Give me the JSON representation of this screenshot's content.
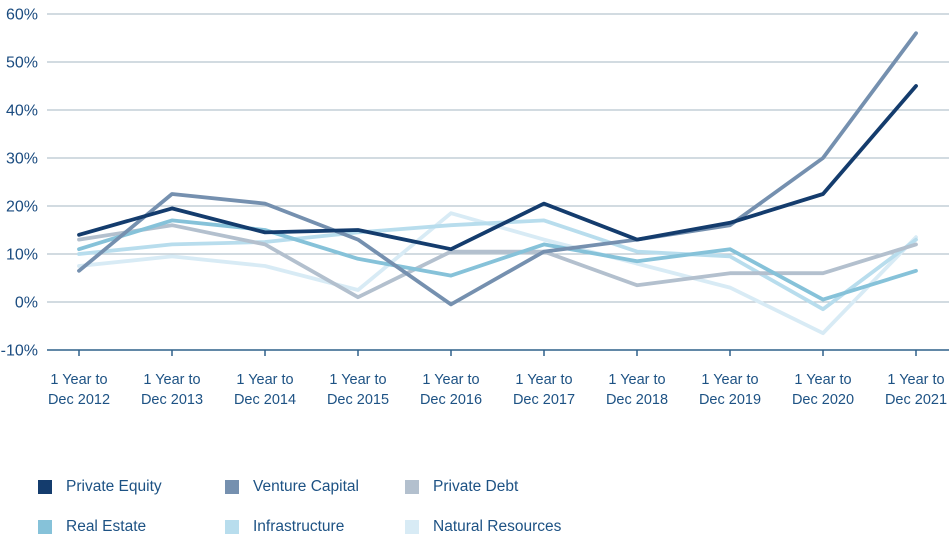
{
  "chart_data": {
    "type": "line",
    "title": "",
    "x_axis": {
      "tick_prefix": "1 Year to",
      "categories": [
        "Dec 2012",
        "Dec 2013",
        "Dec 2014",
        "Dec 2015",
        "Dec 2016",
        "Dec 2017",
        "Dec 2018",
        "Dec 2019",
        "Dec 2020",
        "Dec 2021"
      ]
    },
    "y_axis": {
      "unit": "%",
      "min": -10,
      "max": 60,
      "tick_step": 10,
      "ticks": [
        "60%",
        "50%",
        "40%",
        "30%",
        "20%",
        "10%",
        "0%",
        "-10%"
      ]
    },
    "grid": "horizontal",
    "legend_position": "bottom",
    "series": [
      {
        "name": "Private Equity",
        "color": "#143c6d",
        "values": [
          14,
          19.5,
          14.5,
          15,
          11,
          20.5,
          13,
          16.5,
          22.5,
          45
        ]
      },
      {
        "name": "Venture Capital",
        "color": "#7590af",
        "values": [
          6.5,
          22.5,
          20.5,
          13,
          -0.5,
          10.5,
          13,
          16,
          30,
          56
        ]
      },
      {
        "name": "Private Debt",
        "color": "#b3c0ce",
        "values": [
          13,
          16,
          12,
          1,
          10.5,
          10.5,
          3.5,
          6,
          6,
          12
        ]
      },
      {
        "name": "Real Estate",
        "color": "#86c2d9",
        "values": [
          11,
          17,
          15,
          9,
          5.5,
          12,
          8.5,
          11,
          0.5,
          6.5
        ]
      },
      {
        "name": "Infrastructure",
        "color": "#b8dded",
        "values": [
          10,
          12,
          12.5,
          14.5,
          16,
          17,
          10.5,
          9.5,
          -1.5,
          13
        ]
      },
      {
        "name": "Natural Resources",
        "color": "#d8ebf5",
        "values": [
          7.5,
          9.5,
          7.5,
          2.5,
          18.5,
          13,
          8,
          3,
          -6.5,
          13.5
        ]
      }
    ]
  },
  "colors": {
    "label_text": "#1d5284",
    "ytick_text": "#1b4c80",
    "gridline": "#b7c5cf",
    "axis": "#2f618a",
    "background": "#ffffff"
  }
}
